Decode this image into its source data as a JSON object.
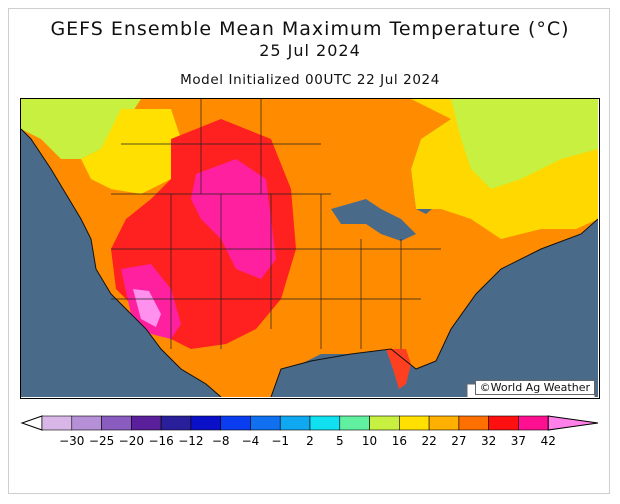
{
  "title": "GEFS Ensemble Mean Maximum Temperature (°C)",
  "valid_date": "25 Jul 2024",
  "init_text": "Model Initialized 00UTC 22 Jul 2024",
  "credit": "©World Ag Weather",
  "legend": {
    "labels": [
      "-30",
      "-25",
      "-20",
      "-16",
      "-12",
      "-8",
      "-4",
      "-1",
      "2",
      "5",
      "10",
      "16",
      "22",
      "27",
      "32",
      "37",
      "42"
    ],
    "colors": [
      "#d8b6e8",
      "#b690d6",
      "#8a5cc0",
      "#5a1f9a",
      "#2a1f9a",
      "#0a10c8",
      "#0a3cf0",
      "#1070f0",
      "#10a8f0",
      "#10e0f0",
      "#60f0a0",
      "#c8f040",
      "#ffe000",
      "#ffb000",
      "#ff7000",
      "#ff1010",
      "#ff1090",
      "#ff80e8"
    ]
  },
  "colors": {
    "ocean": "#4a6a8a"
  }
}
